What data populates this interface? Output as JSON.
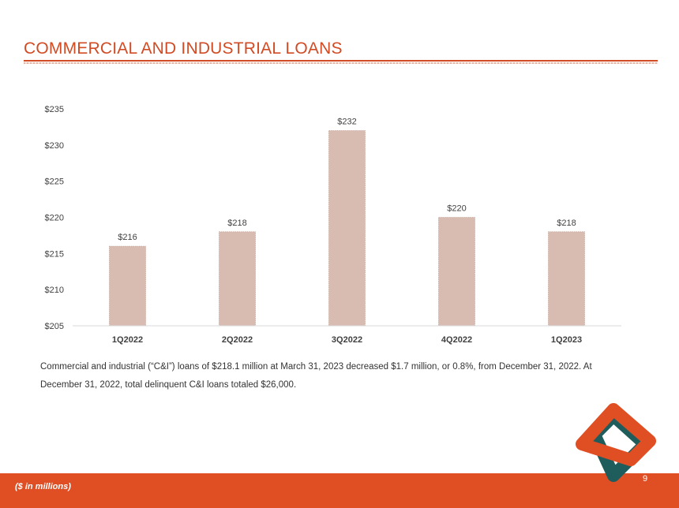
{
  "header": {
    "title": "COMMERCIAL AND INDUSTRIAL LOANS"
  },
  "chart_data": {
    "type": "bar",
    "categories": [
      "1Q2022",
      "2Q2022",
      "3Q2022",
      "4Q2022",
      "1Q2023"
    ],
    "values": [
      216,
      218,
      232,
      220,
      218
    ],
    "data_labels": [
      "$216",
      "$218",
      "$232",
      "$220",
      "$218"
    ],
    "ylim": [
      205,
      235
    ],
    "yticks": [
      205,
      210,
      215,
      220,
      225,
      230,
      235
    ],
    "ytick_labels": [
      "$205",
      "$210",
      "$215",
      "$220",
      "$225",
      "$230",
      "$235"
    ],
    "title": "",
    "xlabel": "",
    "ylabel": "",
    "grid": false,
    "bar_color": "#d8bcb2"
  },
  "note": {
    "text": "Commercial and industrial (“C&I”) loans of $218.1 million at March 31, 2023 decreased $1.7 million, or 0.8%, from December 31, 2022. At December 31, 2022, total delinquent C&I loans totaled $26,000."
  },
  "footer": {
    "units_note": "($ in millions)",
    "page_number": "9"
  },
  "colors": {
    "accent": "#e04e24",
    "title": "#d14b24",
    "logo_orange": "#e04e24",
    "logo_teal": "#1f5d5c"
  },
  "logo": {
    "icon": "interlocking-diamond-logo-icon"
  }
}
